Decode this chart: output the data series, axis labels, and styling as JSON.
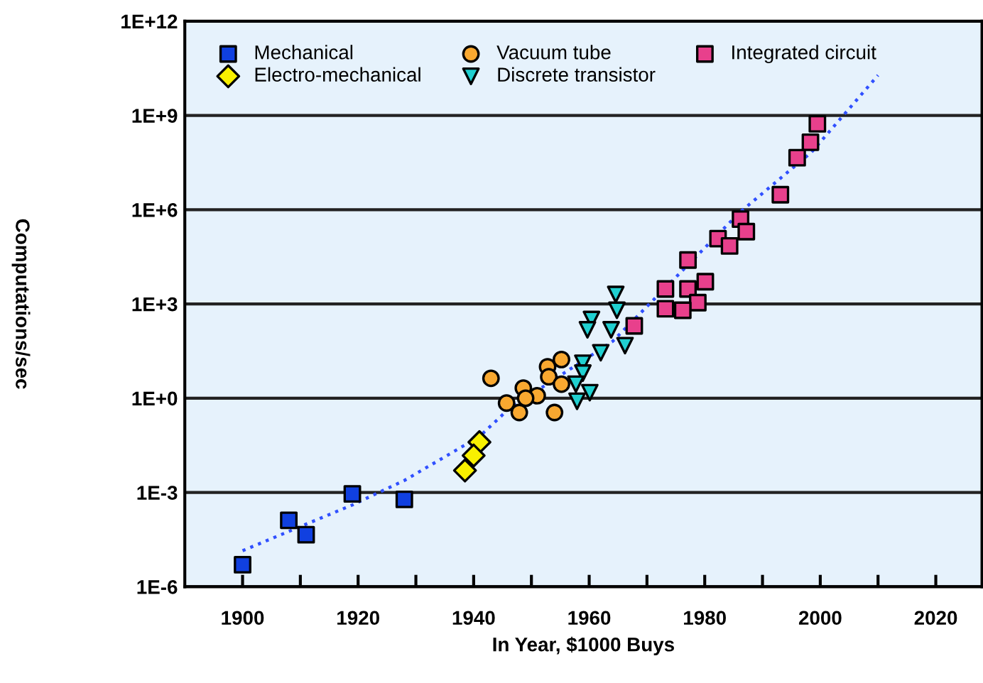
{
  "chart_data": {
    "type": "scatter",
    "xlabel": "In Year, $1000 Buys",
    "ylabel": "Computations/sec",
    "log": "y",
    "grid": "y",
    "legend": "top left",
    "xlim": [
      1890,
      2028
    ],
    "ylim": [
      1e-06,
      1000000000000.0
    ],
    "xticks": [
      1900,
      {
        "value": 1910,
        "label": null
      },
      1920,
      {
        "value": 1930,
        "label": null
      },
      1940,
      {
        "value": 1950,
        "label": null
      },
      1960,
      {
        "value": 1970,
        "label": null
      },
      1980,
      {
        "value": 1990,
        "label": null
      },
      2000,
      {
        "value": 2010,
        "label": null
      },
      2020
    ],
    "yticks": [
      {
        "value": 1e-06,
        "label": "1E-6"
      },
      {
        "value": 0.001,
        "label": "1E-3"
      },
      {
        "value": 1,
        "label": "1E+0"
      },
      {
        "value": 1000.0,
        "label": "1E+3"
      },
      {
        "value": 1000000.0,
        "label": "1E+6"
      },
      {
        "value": 1000000000.0,
        "label": "1E+9"
      },
      {
        "value": 1000000000000.0,
        "label": "1E+12"
      }
    ],
    "series": [
      {
        "name": "Mechanical",
        "color": "#1040e0",
        "marker": "square",
        "x": [
          1900,
          1908,
          1911,
          1919,
          1928
        ],
        "values": [
          5e-06,
          0.00013,
          4.5e-05,
          0.0009,
          0.0006
        ]
      },
      {
        "name": "Electro-mechanical",
        "color": "#f8f000",
        "marker": "diamond",
        "x": [
          1941,
          1940,
          1938.5
        ],
        "values": [
          0.04,
          0.015,
          0.005
        ]
      },
      {
        "name": "Vacuum tube",
        "color": "#f8a830",
        "marker": "circle",
        "x": [
          1943,
          1945.7,
          1947.9,
          1948.6,
          1951,
          1952.8,
          1955.2,
          1953,
          1955.2,
          1954,
          1949
        ],
        "values": [
          4.3,
          0.7,
          0.35,
          2.1,
          1.2,
          10,
          17,
          4.8,
          2.8,
          0.35,
          1
        ]
      },
      {
        "name": "Discrete transistor",
        "color": "#20d0d0",
        "marker": "triangle",
        "x": [
          1964.6,
          1964.8,
          1960.4,
          1959.7,
          1963.8,
          1966.2,
          1962,
          1958.9,
          1958.9,
          1957.7,
          1960.1,
          1957.9
        ],
        "values": [
          2000,
          630,
          320,
          150,
          150,
          47,
          28,
          13,
          6.3,
          2.8,
          1.5,
          0.8
        ]
      },
      {
        "name": "Integrated circuit",
        "color": "#e8408c",
        "marker": "square",
        "x": [
          1999.5,
          1998.3,
          1996,
          1993.1,
          1986.2,
          1987.2,
          1982.3,
          1984.3,
          1977.1,
          1980.1,
          1977.1,
          1973.2,
          1978.8,
          1976.2,
          1973.2,
          1967.8
        ],
        "values": [
          540000000.0,
          140000000.0,
          45000000.0,
          3000000.0,
          500000.0,
          200000.0,
          120000.0,
          70000.0,
          25000.0,
          5100,
          3000,
          3000,
          1100,
          630,
          700,
          200
        ]
      },
      {
        "type": "line",
        "color": "#3050ff",
        "marker": "none",
        "line_style": "dotted",
        "x": [
          1900,
          1919,
          1928,
          1941,
          1946,
          1964,
          1986,
          1998.5,
          2010
        ],
        "values": [
          1.4e-05,
          0.0004,
          0.0024,
          0.06,
          0.44,
          63,
          800000.0,
          68000000.0,
          19000000000.0
        ]
      }
    ]
  }
}
